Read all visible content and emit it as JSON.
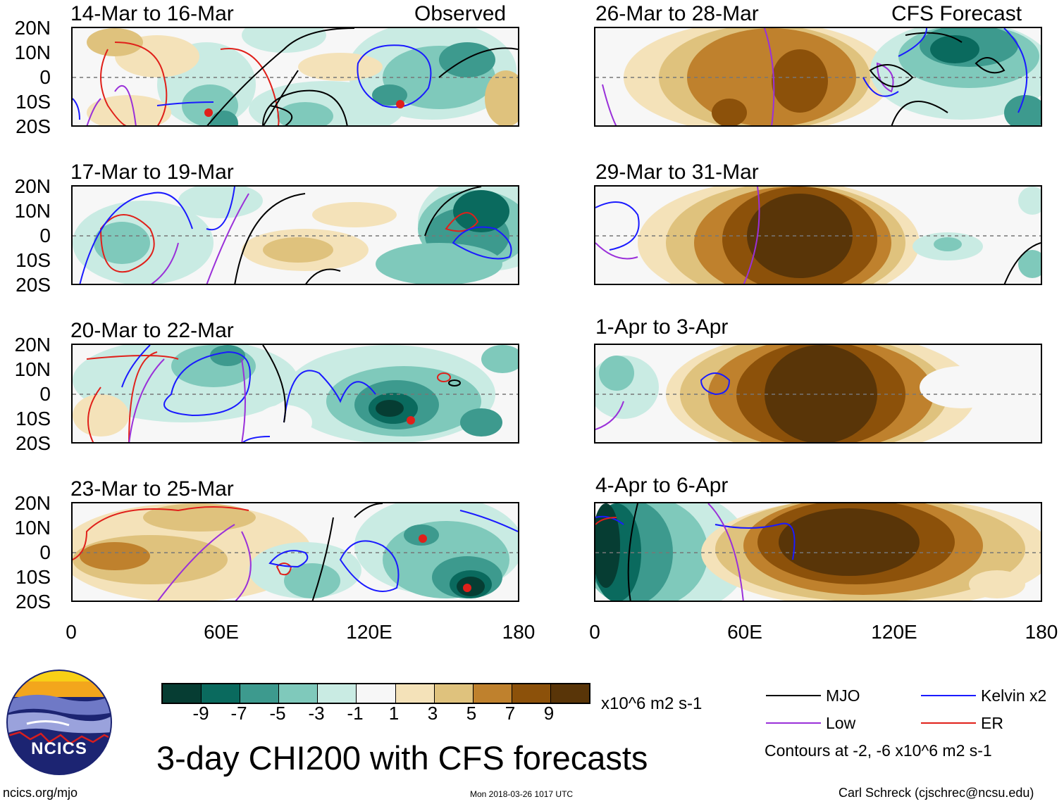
{
  "title": "3-day CHI200 with CFS forecasts",
  "headers": {
    "observed": "Observed",
    "forecast": "CFS Forecast"
  },
  "panels": {
    "obs": [
      {
        "title": "14-Mar to 16-Mar"
      },
      {
        "title": "17-Mar to 19-Mar"
      },
      {
        "title": "20-Mar to 22-Mar"
      },
      {
        "title": "23-Mar to 25-Mar"
      }
    ],
    "fcst": [
      {
        "title": "26-Mar to 28-Mar"
      },
      {
        "title": "29-Mar to 31-Mar"
      },
      {
        "title": "1-Apr to 3-Apr"
      },
      {
        "title": "4-Apr to 6-Apr"
      }
    ]
  },
  "y_ticks": [
    "20N",
    "10N",
    "0",
    "10S",
    "20S"
  ],
  "x_ticks": [
    "0",
    "60E",
    "120E",
    "180"
  ],
  "colorbar": {
    "labels": [
      "-9",
      "-7",
      "-5",
      "-3",
      "-1",
      "1",
      "3",
      "5",
      "7",
      "9"
    ],
    "units": "x10^6 m2 s-1",
    "colors": [
      "#063d33",
      "#0a6a5e",
      "#3d9a8e",
      "#7fc9bb",
      "#c9ebe3",
      "#f7f7f7",
      "#f4e2b9",
      "#dfc27d",
      "#bf812d",
      "#8c510a",
      "#593508"
    ]
  },
  "legend": {
    "mjo": "MJO",
    "kelvin": "Kelvin x2",
    "low": "Low",
    "er": "ER",
    "contours_note": "Contours at -2, -6 x10^6 m2 s-1",
    "colors": {
      "mjo": "#000000",
      "kelvin": "#1a1aff",
      "low": "#9a30d9",
      "er": "#e0201a"
    }
  },
  "logo": {
    "text": "NCICS"
  },
  "footer": {
    "url": "ncics.org/mjo",
    "timestamp": "Mon 2018-03-26 1017 UTC",
    "credit": "Carl Schreck (cjschrec@ncsu.edu)"
  }
}
